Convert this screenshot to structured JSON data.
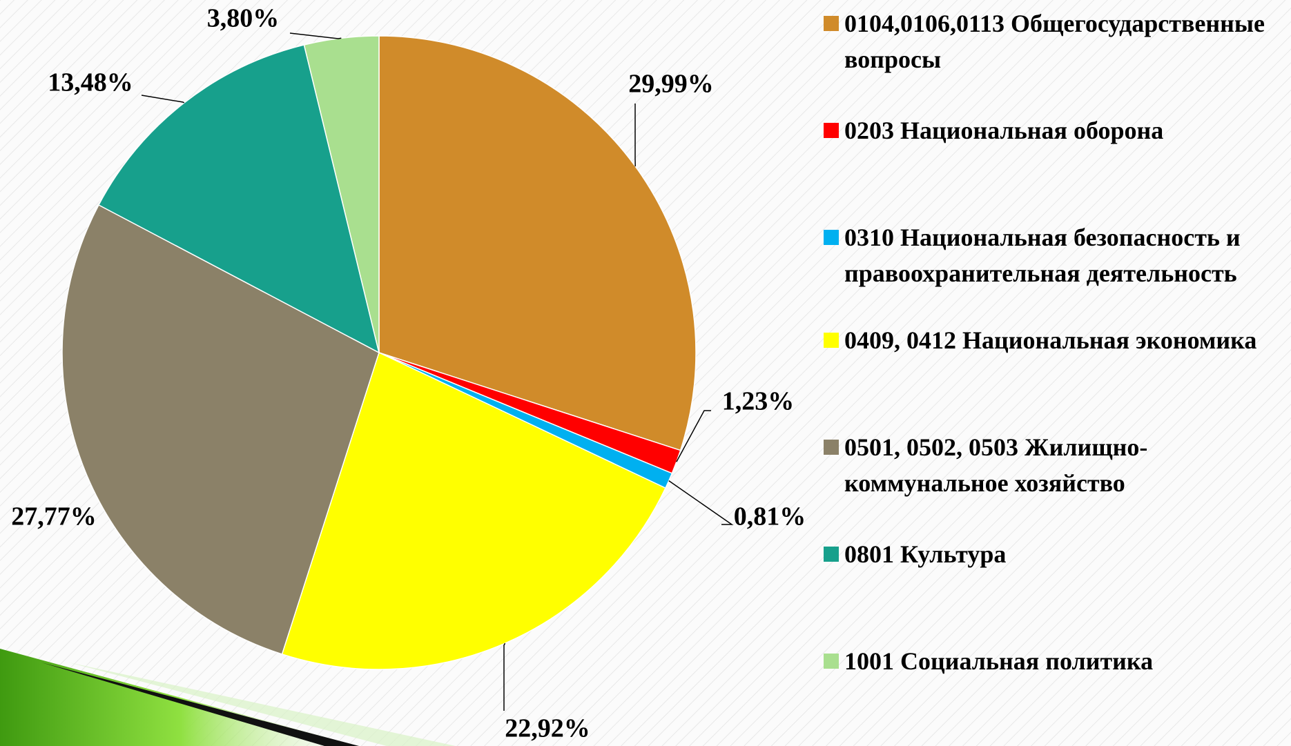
{
  "chart_data": {
    "type": "pie",
    "categories": [
      "0104,0106,0113 Общегосударственные вопросы",
      "0203 Национальная оборона",
      "0310 Национальная безопасность и правоохранительная деятельность",
      "0409, 0412 Национальная экономика",
      "0501, 0502, 0503 Жилищно-коммунальное хозяйство",
      "0801 Культура",
      "1001 Социальная политика"
    ],
    "values": [
      29.99,
      1.23,
      0.81,
      22.92,
      27.77,
      13.48,
      3.8
    ],
    "value_labels": [
      "29,99%",
      "1,23%",
      "0,81%",
      "22,92%",
      "27,77%",
      "13,48%",
      "3,80%"
    ],
    "colors": [
      "#d08b2a",
      "#ff0000",
      "#00b0f0",
      "#ffff00",
      "#8b8168",
      "#17a08c",
      "#a9df8f"
    ]
  }
}
